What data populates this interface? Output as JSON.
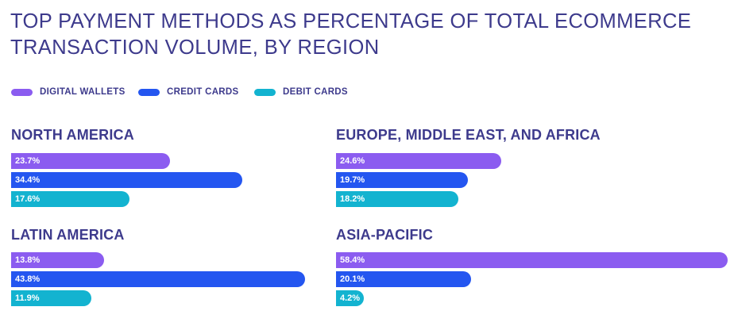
{
  "title_lines": [
    "TOP PAYMENT METHODS AS PERCENTAGE OF TOTAL ECOMMERCE",
    "TRANSACTION VOLUME, BY REGION"
  ],
  "colors": {
    "title": "#3d3a8c",
    "digital_wallets": "#8b5cf0",
    "credit_cards": "#2456f0",
    "debit_cards": "#13b3d0"
  },
  "chart_data": {
    "type": "bar",
    "title": "TOP PAYMENT METHODS AS PERCENTAGE OF TOTAL ECOMMERCE TRANSACTION VOLUME, BY REGION",
    "legend": [
      "DIGITAL WALLETS",
      "CREDIT CARDS",
      "DEBIT CARDS"
    ],
    "legend_position": "top-left",
    "unit": "%",
    "panels": [
      {
        "region": "NORTH AMERICA",
        "values": [
          23.7,
          34.4,
          17.6
        ],
        "labels": [
          "23.7%",
          "34.4%",
          "17.6%"
        ]
      },
      {
        "region": "EUROPE, MIDDLE EAST, AND AFRICA",
        "values": [
          24.6,
          19.7,
          18.2
        ],
        "labels": [
          "24.6%",
          "19.7%",
          "18.2%"
        ]
      },
      {
        "region": "LATIN AMERICA",
        "values": [
          13.8,
          43.8,
          11.9
        ],
        "labels": [
          "13.8%",
          "43.8%",
          "11.9%"
        ]
      },
      {
        "region": "ASIA-PACIFIC",
        "values": [
          58.4,
          20.1,
          4.2
        ],
        "labels": [
          "58.4%",
          "20.1%",
          "4.2%"
        ]
      }
    ]
  }
}
